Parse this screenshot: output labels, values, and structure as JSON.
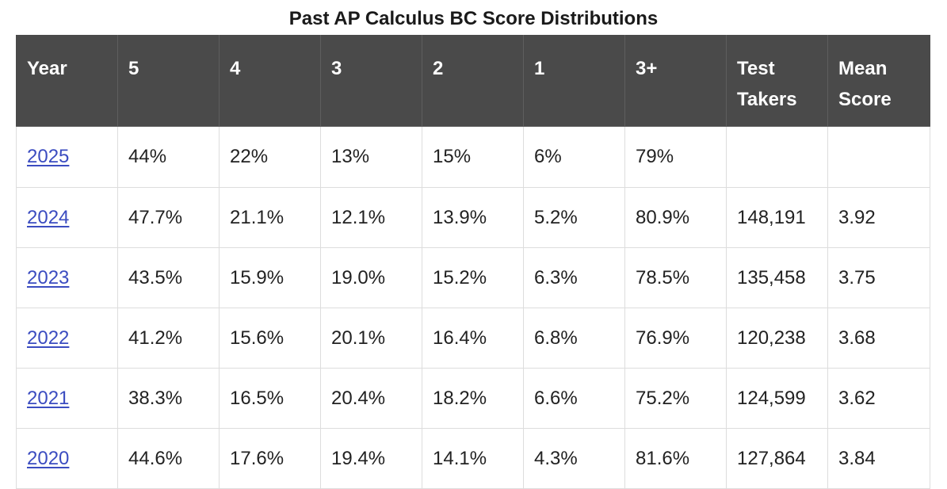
{
  "title": "Past AP Calculus BC Score Distributions",
  "columns": [
    "Year",
    "5",
    "4",
    "3",
    "2",
    "1",
    "3+",
    "Test Takers",
    "Mean Score"
  ],
  "rows": [
    [
      "2025",
      "44%",
      "22%",
      "13%",
      "15%",
      "6%",
      "79%",
      "",
      ""
    ],
    [
      "2024",
      "47.7%",
      "21.1%",
      "12.1%",
      "13.9%",
      "5.2%",
      "80.9%",
      "148,191",
      "3.92"
    ],
    [
      "2023",
      "43.5%",
      "15.9%",
      "19.0%",
      "15.2%",
      "6.3%",
      "78.5%",
      "135,458",
      "3.75"
    ],
    [
      "2022",
      "41.2%",
      "15.6%",
      "20.1%",
      "16.4%",
      "6.8%",
      "76.9%",
      "120,238",
      "3.68"
    ],
    [
      "2021",
      "38.3%",
      "16.5%",
      "20.4%",
      "18.2%",
      "6.6%",
      "75.2%",
      "124,599",
      "3.62"
    ],
    [
      "2020",
      "44.6%",
      "17.6%",
      "19.4%",
      "14.1%",
      "4.3%",
      "81.6%",
      "127,864",
      "3.84"
    ]
  ],
  "colors": {
    "header_bg": "#4a4a4a",
    "header_text": "#ffffff",
    "link": "#3b4cc0",
    "border": "#dddddd"
  }
}
